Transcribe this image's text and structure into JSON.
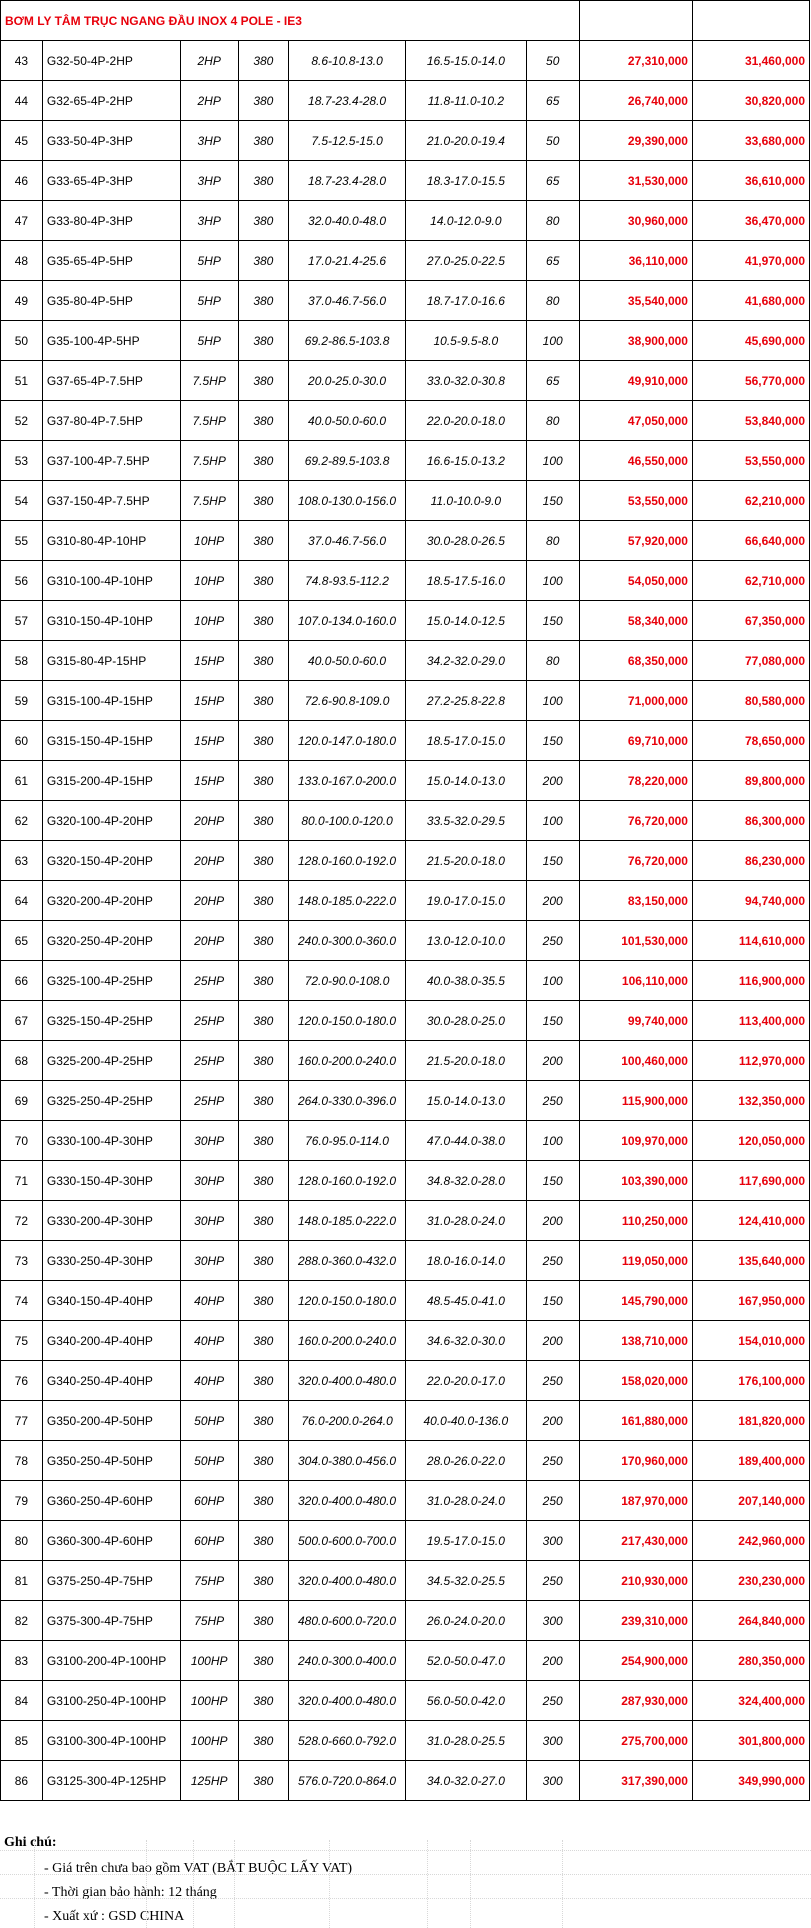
{
  "title": "BƠM LY TÂM TRỤC NGANG ĐẦU INOX 4 POLE - IE3",
  "rows": [
    [
      "43",
      "G32-50-4P-2HP",
      "2HP",
      "380",
      "8.6-10.8-13.0",
      "16.5-15.0-14.0",
      "50",
      "27,310,000",
      "31,460,000"
    ],
    [
      "44",
      "G32-65-4P-2HP",
      "2HP",
      "380",
      "18.7-23.4-28.0",
      "11.8-11.0-10.2",
      "65",
      "26,740,000",
      "30,820,000"
    ],
    [
      "45",
      "G33-50-4P-3HP",
      "3HP",
      "380",
      "7.5-12.5-15.0",
      "21.0-20.0-19.4",
      "50",
      "29,390,000",
      "33,680,000"
    ],
    [
      "46",
      "G33-65-4P-3HP",
      "3HP",
      "380",
      "18.7-23.4-28.0",
      "18.3-17.0-15.5",
      "65",
      "31,530,000",
      "36,610,000"
    ],
    [
      "47",
      "G33-80-4P-3HP",
      "3HP",
      "380",
      "32.0-40.0-48.0",
      "14.0-12.0-9.0",
      "80",
      "30,960,000",
      "36,470,000"
    ],
    [
      "48",
      "G35-65-4P-5HP",
      "5HP",
      "380",
      "17.0-21.4-25.6",
      "27.0-25.0-22.5",
      "65",
      "36,110,000",
      "41,970,000"
    ],
    [
      "49",
      "G35-80-4P-5HP",
      "5HP",
      "380",
      "37.0-46.7-56.0",
      "18.7-17.0-16.6",
      "80",
      "35,540,000",
      "41,680,000"
    ],
    [
      "50",
      "G35-100-4P-5HP",
      "5HP",
      "380",
      "69.2-86.5-103.8",
      "10.5-9.5-8.0",
      "100",
      "38,900,000",
      "45,690,000"
    ],
    [
      "51",
      "G37-65-4P-7.5HP",
      "7.5HP",
      "380",
      "20.0-25.0-30.0",
      "33.0-32.0-30.8",
      "65",
      "49,910,000",
      "56,770,000"
    ],
    [
      "52",
      "G37-80-4P-7.5HP",
      "7.5HP",
      "380",
      "40.0-50.0-60.0",
      "22.0-20.0-18.0",
      "80",
      "47,050,000",
      "53,840,000"
    ],
    [
      "53",
      "G37-100-4P-7.5HP",
      "7.5HP",
      "380",
      "69.2-89.5-103.8",
      "16.6-15.0-13.2",
      "100",
      "46,550,000",
      "53,550,000"
    ],
    [
      "54",
      "G37-150-4P-7.5HP",
      "7.5HP",
      "380",
      "108.0-130.0-156.0",
      "11.0-10.0-9.0",
      "150",
      "53,550,000",
      "62,210,000"
    ],
    [
      "55",
      "G310-80-4P-10HP",
      "10HP",
      "380",
      "37.0-46.7-56.0",
      "30.0-28.0-26.5",
      "80",
      "57,920,000",
      "66,640,000"
    ],
    [
      "56",
      "G310-100-4P-10HP",
      "10HP",
      "380",
      "74.8-93.5-112.2",
      "18.5-17.5-16.0",
      "100",
      "54,050,000",
      "62,710,000"
    ],
    [
      "57",
      "G310-150-4P-10HP",
      "10HP",
      "380",
      "107.0-134.0-160.0",
      "15.0-14.0-12.5",
      "150",
      "58,340,000",
      "67,350,000"
    ],
    [
      "58",
      "G315-80-4P-15HP",
      "15HP",
      "380",
      "40.0-50.0-60.0",
      "34.2-32.0-29.0",
      "80",
      "68,350,000",
      "77,080,000"
    ],
    [
      "59",
      "G315-100-4P-15HP",
      "15HP",
      "380",
      "72.6-90.8-109.0",
      "27.2-25.8-22.8",
      "100",
      "71,000,000",
      "80,580,000"
    ],
    [
      "60",
      "G315-150-4P-15HP",
      "15HP",
      "380",
      "120.0-147.0-180.0",
      "18.5-17.0-15.0",
      "150",
      "69,710,000",
      "78,650,000"
    ],
    [
      "61",
      "G315-200-4P-15HP",
      "15HP",
      "380",
      "133.0-167.0-200.0",
      "15.0-14.0-13.0",
      "200",
      "78,220,000",
      "89,800,000"
    ],
    [
      "62",
      "G320-100-4P-20HP",
      "20HP",
      "380",
      "80.0-100.0-120.0",
      "33.5-32.0-29.5",
      "100",
      "76,720,000",
      "86,300,000"
    ],
    [
      "63",
      "G320-150-4P-20HP",
      "20HP",
      "380",
      "128.0-160.0-192.0",
      "21.5-20.0-18.0",
      "150",
      "76,720,000",
      "86,230,000"
    ],
    [
      "64",
      "G320-200-4P-20HP",
      "20HP",
      "380",
      "148.0-185.0-222.0",
      "19.0-17.0-15.0",
      "200",
      "83,150,000",
      "94,740,000"
    ],
    [
      "65",
      "G320-250-4P-20HP",
      "20HP",
      "380",
      "240.0-300.0-360.0",
      "13.0-12.0-10.0",
      "250",
      "101,530,000",
      "114,610,000"
    ],
    [
      "66",
      "G325-100-4P-25HP",
      "25HP",
      "380",
      "72.0-90.0-108.0",
      "40.0-38.0-35.5",
      "100",
      "106,110,000",
      "116,900,000"
    ],
    [
      "67",
      "G325-150-4P-25HP",
      "25HP",
      "380",
      "120.0-150.0-180.0",
      "30.0-28.0-25.0",
      "150",
      "99,740,000",
      "113,400,000"
    ],
    [
      "68",
      "G325-200-4P-25HP",
      "25HP",
      "380",
      "160.0-200.0-240.0",
      "21.5-20.0-18.0",
      "200",
      "100,460,000",
      "112,970,000"
    ],
    [
      "69",
      "G325-250-4P-25HP",
      "25HP",
      "380",
      "264.0-330.0-396.0",
      "15.0-14.0-13.0",
      "250",
      "115,900,000",
      "132,350,000"
    ],
    [
      "70",
      "G330-100-4P-30HP",
      "30HP",
      "380",
      "76.0-95.0-114.0",
      "47.0-44.0-38.0",
      "100",
      "109,970,000",
      "120,050,000"
    ],
    [
      "71",
      "G330-150-4P-30HP",
      "30HP",
      "380",
      "128.0-160.0-192.0",
      "34.8-32.0-28.0",
      "150",
      "103,390,000",
      "117,690,000"
    ],
    [
      "72",
      "G330-200-4P-30HP",
      "30HP",
      "380",
      "148.0-185.0-222.0",
      "31.0-28.0-24.0",
      "200",
      "110,250,000",
      "124,410,000"
    ],
    [
      "73",
      "G330-250-4P-30HP",
      "30HP",
      "380",
      "288.0-360.0-432.0",
      "18.0-16.0-14.0",
      "250",
      "119,050,000",
      "135,640,000"
    ],
    [
      "74",
      "G340-150-4P-40HP",
      "40HP",
      "380",
      "120.0-150.0-180.0",
      "48.5-45.0-41.0",
      "150",
      "145,790,000",
      "167,950,000"
    ],
    [
      "75",
      "G340-200-4P-40HP",
      "40HP",
      "380",
      "160.0-200.0-240.0",
      "34.6-32.0-30.0",
      "200",
      "138,710,000",
      "154,010,000"
    ],
    [
      "76",
      "G340-250-4P-40HP",
      "40HP",
      "380",
      "320.0-400.0-480.0",
      "22.0-20.0-17.0",
      "250",
      "158,020,000",
      "176,100,000"
    ],
    [
      "77",
      "G350-200-4P-50HP",
      "50HP",
      "380",
      "76.0-200.0-264.0",
      "40.0-40.0-136.0",
      "200",
      "161,880,000",
      "181,820,000"
    ],
    [
      "78",
      "G350-250-4P-50HP",
      "50HP",
      "380",
      "304.0-380.0-456.0",
      "28.0-26.0-22.0",
      "250",
      "170,960,000",
      "189,400,000"
    ],
    [
      "79",
      "G360-250-4P-60HP",
      "60HP",
      "380",
      "320.0-400.0-480.0",
      "31.0-28.0-24.0",
      "250",
      "187,970,000",
      "207,140,000"
    ],
    [
      "80",
      "G360-300-4P-60HP",
      "60HP",
      "380",
      "500.0-600.0-700.0",
      "19.5-17.0-15.0",
      "300",
      "217,430,000",
      "242,960,000"
    ],
    [
      "81",
      "G375-250-4P-75HP",
      "75HP",
      "380",
      "320.0-400.0-480.0",
      "34.5-32.0-25.5",
      "250",
      "210,930,000",
      "230,230,000"
    ],
    [
      "82",
      "G375-300-4P-75HP",
      "75HP",
      "380",
      "480.0-600.0-720.0",
      "26.0-24.0-20.0",
      "300",
      "239,310,000",
      "264,840,000"
    ],
    [
      "83",
      "G3100-200-4P-100HP",
      "100HP",
      "380",
      "240.0-300.0-400.0",
      "52.0-50.0-47.0",
      "200",
      "254,900,000",
      "280,350,000"
    ],
    [
      "84",
      "G3100-250-4P-100HP",
      "100HP",
      "380",
      "320.0-400.0-480.0",
      "56.0-50.0-42.0",
      "250",
      "287,930,000",
      "324,400,000"
    ],
    [
      "85",
      "G3100-300-4P-100HP",
      "100HP",
      "380",
      "528.0-660.0-792.0",
      "31.0-28.0-25.5",
      "300",
      "275,700,000",
      "301,800,000"
    ],
    [
      "86",
      "G3125-300-4P-125HP",
      "125HP",
      "380",
      "576.0-720.0-864.0",
      "34.0-32.0-27.0",
      "300",
      "317,390,000",
      "349,990,000"
    ]
  ],
  "notes": {
    "title": "Ghi chú:",
    "lines": [
      "- Giá trên chưa bao gồm VAT (BẮT BUỘC LẤY VAT)",
      "- Thời gian bảo hành: 12 tháng",
      "- Xuất xứ : GSD CHINA"
    ]
  },
  "colors": {
    "accent": "#e8000b",
    "border": "#000000",
    "background": "#ffffff"
  }
}
